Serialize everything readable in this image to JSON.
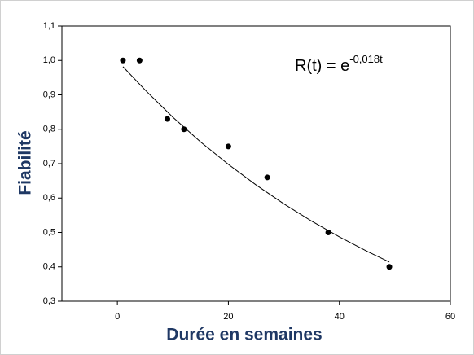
{
  "chart_data": {
    "type": "scatter",
    "xlabel": "Durée en semaines",
    "ylabel": "Fiabilité",
    "annotation": {
      "text": "R(t) = e",
      "superscript": "-0,018t"
    },
    "xlim": [
      -10,
      60
    ],
    "ylim": [
      0.3,
      1.1
    ],
    "xticks": [
      0,
      20,
      40,
      60
    ],
    "yticks": [
      {
        "value": 0.3,
        "label": "0,3"
      },
      {
        "value": 0.4,
        "label": "0,4"
      },
      {
        "value": 0.5,
        "label": "0,5"
      },
      {
        "value": 0.6,
        "label": "0,6"
      },
      {
        "value": 0.7,
        "label": "0,7"
      },
      {
        "value": 0.8,
        "label": "0,8"
      },
      {
        "value": 0.9,
        "label": "0,9"
      },
      {
        "value": 1.0,
        "label": "1,0"
      },
      {
        "value": 1.1,
        "label": "1,1"
      }
    ],
    "series": [
      {
        "style": "markers",
        "color": "#000000",
        "x": [
          1,
          4,
          9,
          12,
          20,
          27,
          38,
          49
        ],
        "values": [
          1.0,
          1.0,
          0.83,
          0.8,
          0.75,
          0.66,
          0.5,
          0.4
        ]
      },
      {
        "style": "line",
        "color": "#000000",
        "x": [
          1,
          5,
          10,
          15,
          20,
          25,
          30,
          35,
          40,
          45,
          49
        ],
        "values": [
          0.982,
          0.914,
          0.835,
          0.763,
          0.698,
          0.638,
          0.583,
          0.533,
          0.487,
          0.445,
          0.414
        ]
      }
    ]
  }
}
